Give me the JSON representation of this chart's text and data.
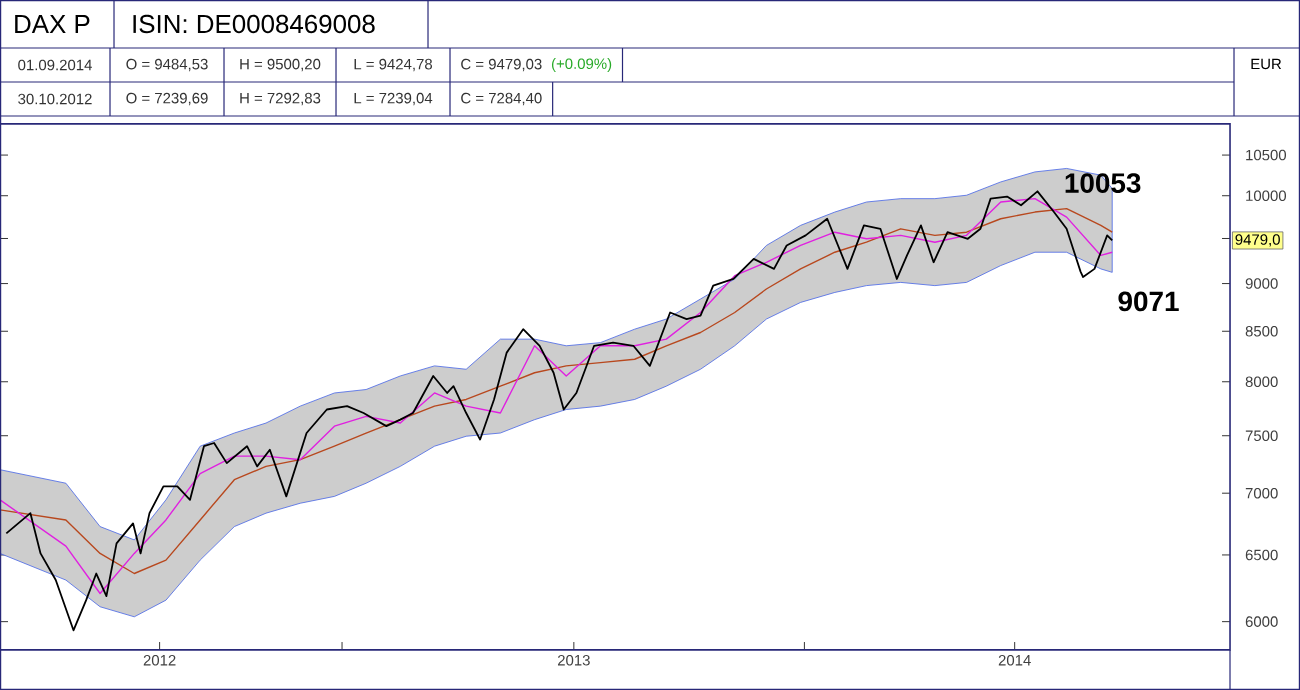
{
  "chart_data": {
    "type": "line",
    "title": "DAX P",
    "subtitle": "ISIN: DE0008469008",
    "ylabel": "EUR",
    "log": true,
    "ylim": [
      5800,
      10900
    ],
    "yticks": [
      6000,
      6500,
      7000,
      7500,
      8000,
      8500,
      9000,
      {
        "value": 9500,
        "label": null
      },
      10000,
      10500
    ],
    "xlim": [
      "2012-04-06",
      "2014-12-03"
    ],
    "xticks": [
      {
        "value": "2012-08-10",
        "label": "2012"
      },
      {
        "value": "2013-01-01",
        "label": null
      },
      {
        "value": "2013-07-03",
        "label": "2013"
      },
      {
        "value": "2014-01-01",
        "label": null
      },
      {
        "value": "2014-06-16",
        "label": "2014"
      }
    ],
    "marker": "none",
    "line_style": "solid",
    "tick_labels": "xy",
    "series": [
      {
        "color": "#b8481e",
        "x": [
          "2012-04-06",
          "2012-05-28",
          "2012-06-24",
          "2012-07-21",
          "2012-08-15",
          "2012-09-11",
          "2012-10-08",
          "2012-11-02",
          "2012-11-29",
          "2012-12-26",
          "2013-01-20",
          "2013-02-16",
          "2013-03-15",
          "2013-04-09",
          "2013-05-06",
          "2013-06-02",
          "2013-06-27",
          "2013-07-24",
          "2013-08-20",
          "2013-09-14",
          "2013-10-11",
          "2013-11-07",
          "2013-12-02",
          "2013-12-29",
          "2014-01-25",
          "2014-02-19",
          "2014-03-18",
          "2014-04-14",
          "2014-05-09",
          "2014-06-05",
          "2014-07-02",
          "2014-07-27",
          "2014-08-23",
          "2014-09-01"
        ],
        "values": [
          6861,
          6779,
          6512,
          6357,
          6460,
          6779,
          7114,
          7229,
          7287,
          7406,
          7524,
          7646,
          7771,
          7833,
          7960,
          8087,
          8154,
          8186,
          8219,
          8353,
          8487,
          8693,
          8942,
          9160,
          9345,
          9458,
          9611,
          9536,
          9572,
          9728,
          9806,
          9846,
          9651,
          9572
        ],
        "upper": [
          7200,
          7084,
          6725,
          6618,
          6944,
          7406,
          7524,
          7615,
          7771,
          7895,
          7927,
          8056,
          8154,
          8121,
          8420,
          8420,
          8353,
          8385,
          8521,
          8625,
          8835,
          9050,
          9421,
          9651,
          9806,
          9925,
          9965,
          9965,
          10006,
          10167,
          10290,
          10333,
          10250,
          10087
        ],
        "lower": [
          6512,
          6307,
          6108,
          6035,
          6157,
          6460,
          6725,
          6834,
          6916,
          6973,
          7084,
          7229,
          7406,
          7495,
          7524,
          7646,
          7739,
          7771,
          7833,
          7960,
          8121,
          8353,
          8625,
          8799,
          8905,
          8978,
          9013,
          8978,
          9013,
          9197,
          9345,
          9345,
          9160,
          9122
        ]
      },
      {
        "color": "#e020e0",
        "x": [
          "2012-04-06",
          "2012-05-28",
          "2012-06-24",
          "2012-07-21",
          "2012-08-15",
          "2012-09-11",
          "2012-10-08",
          "2012-11-02",
          "2012-11-29",
          "2012-12-26",
          "2013-01-20",
          "2013-02-16",
          "2013-03-15",
          "2013-04-09",
          "2013-05-06",
          "2013-06-02",
          "2013-06-27",
          "2013-07-24",
          "2013-08-20",
          "2013-09-14",
          "2013-10-11",
          "2013-11-07",
          "2013-12-02",
          "2013-12-29",
          "2014-01-25",
          "2014-02-19",
          "2014-03-18",
          "2014-04-14",
          "2014-05-09",
          "2014-06-05",
          "2014-07-02",
          "2014-07-27",
          "2014-08-23",
          "2014-09-01"
        ],
        "values": [
          6944,
          6569,
          6206,
          6512,
          6779,
          7166,
          7318,
          7318,
          7287,
          7586,
          7676,
          7615,
          7895,
          7771,
          7707,
          8353,
          8056,
          8353,
          8353,
          8420,
          8693,
          9085,
          9233,
          9421,
          9572,
          9497,
          9536,
          9458,
          9536,
          9925,
          9965,
          9747,
          9309,
          9345
        ]
      },
      {
        "color": "#000000",
        "x": [
          "2012-04-11",
          "2012-04-30",
          "2012-05-08",
          "2012-05-20",
          "2012-06-03",
          "2012-06-13",
          "2012-06-21",
          "2012-06-29",
          "2012-07-07",
          "2012-07-20",
          "2012-07-26",
          "2012-08-02",
          "2012-08-13",
          "2012-08-24",
          "2012-09-03",
          "2012-09-14",
          "2012-09-22",
          "2012-10-02",
          "2012-10-18",
          "2012-10-26",
          "2012-11-05",
          "2012-11-18",
          "2012-12-04",
          "2012-12-20",
          "2013-01-05",
          "2013-01-18",
          "2013-02-05",
          "2013-02-16",
          "2013-02-26",
          "2013-03-14",
          "2013-03-25",
          "2013-03-30",
          "2013-04-09",
          "2013-04-20",
          "2013-05-01",
          "2013-05-11",
          "2013-05-24",
          "2013-06-06",
          "2013-06-17",
          "2013-06-25",
          "2013-07-05",
          "2013-07-19",
          "2013-08-03",
          "2013-08-19",
          "2013-09-01",
          "2013-09-17",
          "2013-09-30",
          "2013-10-11",
          "2013-10-21",
          "2013-11-06",
          "2013-11-22",
          "2013-12-08",
          "2013-12-18",
          "2014-01-02",
          "2014-01-19",
          "2014-02-04",
          "2014-02-17",
          "2014-03-02",
          "2014-03-15",
          "2014-03-23",
          "2014-04-03",
          "2014-04-13",
          "2014-04-24",
          "2014-05-10",
          "2014-05-20",
          "2014-05-28",
          "2014-06-10",
          "2014-06-21",
          "2014-07-04",
          "2014-07-17",
          "2014-07-27",
          "2014-08-07",
          "2014-08-09",
          "2014-08-18",
          "2014-08-28",
          "2014-09-01"
        ],
        "values": [
          6670,
          6834,
          6512,
          6307,
          5938,
          6157,
          6357,
          6187,
          6591,
          6751,
          6512,
          6834,
          7057,
          7057,
          6944,
          7406,
          7434,
          7257,
          7406,
          7229,
          7375,
          6973,
          7524,
          7739,
          7771,
          7707,
          7586,
          7646,
          7707,
          8056,
          7895,
          7960,
          7707,
          7465,
          7833,
          8285,
          8521,
          8353,
          8087,
          7739,
          7895,
          8353,
          8385,
          8353,
          8154,
          8693,
          8625,
          8660,
          8978,
          9050,
          9271,
          9160,
          9421,
          9536,
          9728,
          9160,
          9651,
          9611,
          9050,
          9309,
          9651,
          9233,
          9572,
          9497,
          9611,
          9965,
          9990,
          9886,
          10053,
          9806,
          9611,
          9130,
          9071,
          9160,
          9536,
          9479
        ]
      }
    ],
    "annotations": [
      "01.09.2014",
      "O = 9484,53",
      "H = 9500,20",
      "L = 9424,78",
      "C = 9479,03",
      "(+0.09%)",
      "30.10.2012",
      "O = 7239,69",
      "H = 7292,83",
      "L = 7239,04",
      "C = 7284,40",
      {
        "text": "10053",
        "x": "2014-07-04",
        "y": 10053
      },
      {
        "text": "9071",
        "x": "2014-08-09",
        "y": 9071
      },
      "9479,0"
    ]
  }
}
